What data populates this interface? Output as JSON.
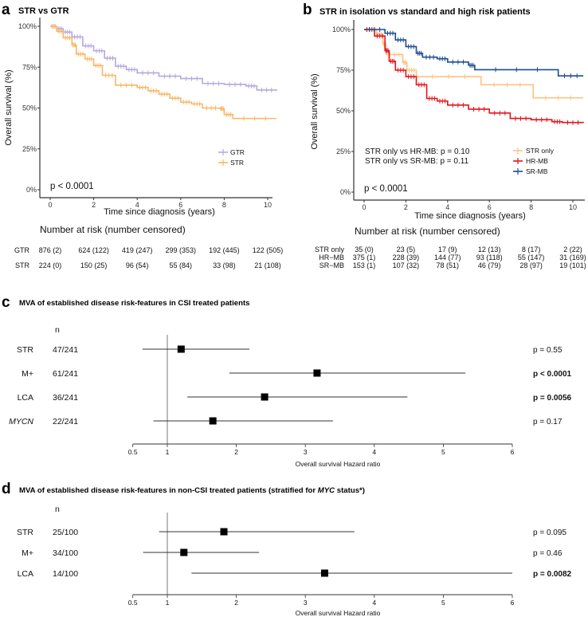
{
  "chart_data": [
    {
      "type": "line",
      "panel_label": "a",
      "title": "STR vs GTR",
      "xlabel": "Time since diagnosis (years)",
      "ylabel": "Overall survival (%)",
      "xlim": [
        0,
        10.4
      ],
      "ylim": [
        0,
        100
      ],
      "x_ticks": [
        "0",
        "2",
        "4",
        "6",
        "8",
        "10"
      ],
      "y_ticks": [
        "0%",
        "25%",
        "50%",
        "75%",
        "100%"
      ],
      "legend_placement": "bottom-right",
      "pvalue": "p < 0.0001",
      "series": [
        {
          "name": "GTR",
          "color": "#B6A8DF",
          "x": [
            0,
            0.3,
            0.6,
            1,
            1.5,
            2,
            2.5,
            3,
            3.5,
            4,
            5,
            6,
            7,
            8,
            9,
            9.5,
            10.4
          ],
          "y": [
            100,
            98.5,
            96.5,
            93.5,
            88,
            85,
            80.5,
            75.6,
            73.5,
            71.5,
            69.5,
            68,
            65,
            64.5,
            63.5,
            61,
            60.5
          ]
        },
        {
          "name": "STR",
          "color": "#F7B768",
          "x": [
            0,
            0.3,
            0.6,
            1,
            1.2,
            1.6,
            2,
            2.4,
            3,
            4,
            4.5,
            5,
            5.5,
            6,
            6.5,
            7,
            7.8,
            8,
            8.4,
            10.4
          ],
          "y": [
            100,
            97,
            93,
            88.6,
            83,
            80,
            76,
            70,
            64,
            62.6,
            60.5,
            58.5,
            56,
            53.6,
            52.5,
            50,
            49.6,
            46,
            43.6,
            43.6
          ]
        }
      ],
      "risk_table": {
        "title": "Number at risk (number censored)",
        "rows": [
          {
            "label": "GTR",
            "values": [
              "876 (2)",
              "624 (122)",
              "419 (247)",
              "299 (353)",
              "192 (445)",
              "122 (505)"
            ]
          },
          {
            "label": "STR",
            "values": [
              "224 (0)",
              "150 (25)",
              "96 (54)",
              "55 (84)",
              "33 (98)",
              "21 (108)"
            ]
          }
        ]
      }
    },
    {
      "type": "line",
      "panel_label": "b",
      "title": "STR in isolation vs standard and high risk patients",
      "xlabel": "Time since diagnosis (years)",
      "ylabel": "Overall survival (%)",
      "xlim": [
        0,
        10.5
      ],
      "ylim": [
        0,
        100
      ],
      "x_ticks": [
        "0",
        "2",
        "4",
        "6",
        "8",
        "10"
      ],
      "y_ticks": [
        "0%",
        "25%",
        "50%",
        "75%",
        "100%"
      ],
      "legend_placement": "bottom-right",
      "pvalue": "p < 0.0001",
      "annotations": [
        "STR only vs HR-MB: p = 0.10",
        "STR only vs SR-MB: p = 0.11"
      ],
      "series": [
        {
          "name": "STR only",
          "color": "#FDC382",
          "x": [
            0,
            0.6,
            0.9,
            1.05,
            1.85,
            2.05,
            2.5,
            5.6,
            8.1,
            10.5
          ],
          "y": [
            100,
            97,
            91,
            84.6,
            79.7,
            75,
            71,
            66,
            58,
            58
          ]
        },
        {
          "name": "HR-MB",
          "color": "#E3141B",
          "x": [
            0,
            0.5,
            1,
            1.2,
            1.5,
            2,
            2.5,
            3,
            3.5,
            4,
            5,
            6,
            7,
            8,
            9,
            9.5,
            10.5
          ],
          "y": [
            100,
            96,
            87,
            80.5,
            75,
            71,
            66,
            57.6,
            56,
            53.5,
            51,
            48.6,
            45.3,
            44.5,
            43.3,
            42.8,
            42.6
          ]
        },
        {
          "name": "SR-MB",
          "color": "#1C4D91",
          "x": [
            0,
            1,
            1.5,
            2,
            2.5,
            2.8,
            3.5,
            4,
            5,
            5.3,
            9.3,
            10.5
          ],
          "y": [
            100,
            97.7,
            93.6,
            89.5,
            85.4,
            83,
            82,
            80,
            78,
            75.3,
            71.5,
            71.5
          ]
        }
      ],
      "risk_table": {
        "title": "Number at risk (number censored)",
        "rows": [
          {
            "label": "STR only",
            "values": [
              "35 (0)",
              "23 (5)",
              "17 (9)",
              "12 (13)",
              "8 (17)",
              "2 (22)"
            ]
          },
          {
            "label": "HR−MB",
            "values": [
              "375 (1)",
              "228 (39)",
              "144 (77)",
              "93 (118)",
              "55 (147)",
              "31 (169)"
            ]
          },
          {
            "label": "SR−MB",
            "values": [
              "153 (1)",
              "107 (32)",
              "78 (51)",
              "46 (79)",
              "28 (97)",
              "19 (101)"
            ]
          }
        ]
      }
    },
    {
      "type": "forest",
      "panel_label": "c",
      "title": "MVA of established disease risk-features in CSI treated patients",
      "xlabel": "Overall survival Hazard ratio",
      "xlim": [
        0.5,
        6
      ],
      "x_ticks": [
        "0.5",
        "1",
        "2",
        "3",
        "4",
        "5",
        "6"
      ],
      "reference": 1,
      "n_header": "n",
      "rows": [
        {
          "label": "STR",
          "italic": false,
          "n": "47/241",
          "hr": 1.2,
          "lo": 0.64,
          "hi": 2.19,
          "p": "p = 0.55",
          "significant": false
        },
        {
          "label": "M+",
          "italic": false,
          "n": "61/241",
          "hr": 3.17,
          "lo": 1.9,
          "hi": 5.32,
          "p": "p < 0.0001",
          "significant": true
        },
        {
          "label": "LCA",
          "italic": false,
          "n": "36/241",
          "hr": 2.41,
          "lo": 1.29,
          "hi": 4.48,
          "p": "p = 0.0056",
          "significant": true
        },
        {
          "label": "MYCN",
          "italic": true,
          "n": "22/241",
          "hr": 1.66,
          "lo": 0.8,
          "hi": 3.4,
          "p": "p = 0.17",
          "significant": false
        }
      ]
    },
    {
      "type": "forest",
      "panel_label": "d",
      "title_pre": "MVA of established disease risk-features in non-CSI treated patients (stratified for ",
      "title_ital": "MYC",
      "title_post": " status*)",
      "xlabel": "Overall survival Hazard ratio",
      "xlim": [
        0.5,
        6
      ],
      "x_ticks": [
        "0.5",
        "1",
        "2",
        "3",
        "4",
        "5",
        "6"
      ],
      "reference": 1,
      "n_header": "n",
      "rows": [
        {
          "label": "STR",
          "italic": false,
          "n": "25/100",
          "hr": 1.82,
          "lo": 0.88,
          "hi": 3.71,
          "p": "p = 0.095",
          "significant": false
        },
        {
          "label": "M+",
          "italic": false,
          "n": "34/100",
          "hr": 1.24,
          "lo": 0.65,
          "hi": 2.33,
          "p": "p = 0.46",
          "significant": false
        },
        {
          "label": "LCA",
          "italic": false,
          "n": "14/100",
          "hr": 3.28,
          "lo": 1.35,
          "hi": 6.0,
          "p": "p = 0.0082",
          "significant": true
        }
      ]
    }
  ]
}
